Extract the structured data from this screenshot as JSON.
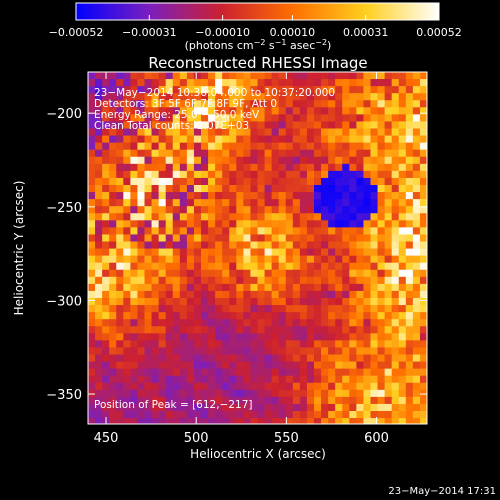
{
  "chart_data": {
    "type": "heatmap",
    "title": "Reconstructed RHESSI Image",
    "xlabel": "Heliocentric X (arcsec)",
    "ylabel": "Heliocentric Y (arcsec)",
    "xlim": [
      440,
      628
    ],
    "ylim": [
      -366,
      -178
    ],
    "x_ticks": [
      450,
      500,
      550,
      600
    ],
    "y_ticks": [
      -200,
      -250,
      -300,
      -350
    ],
    "x_tick_labels": [
      "450",
      "500",
      "550",
      "600"
    ],
    "y_tick_labels": [
      "−200",
      "−250",
      "−300",
      "−350"
    ],
    "colorbar": {
      "range": [
        -0.00052,
        0.00052
      ],
      "ticks": [
        -0.00052,
        -0.00031,
        -0.0001,
        0.0001,
        0.00031,
        0.00052
      ],
      "tick_labels": [
        "−0.00052",
        "−0.00031",
        "−0.00010",
        "0.00010",
        "0.00031",
        "0.00052"
      ],
      "unit_prefix": "(photons cm",
      "unit_exp1": "−2",
      "unit_mid1": " s",
      "unit_exp2": "−1",
      "unit_mid2": " asec",
      "unit_exp3": "−2",
      "unit_suffix": ")",
      "colors": [
        "#0000ff",
        "#7a1fbf",
        "#cc2030",
        "#ff7000",
        "#ffd020",
        "#ffffff"
      ]
    },
    "annotations": {
      "time_range": "23−May−2014 10:36:04.000 to 10:37:20.000",
      "detectors": "Detectors: 3F 5F 6F 7F 8F 9F, Att 0",
      "energy": "Energy Range: 25.0 − 50.0 keV",
      "clean": "Clean     Total counts: 2.07E+03",
      "peak": "Position of Peak = [612,−217]"
    },
    "peak": [
      612,
      -217
    ],
    "timestamp": "23−May−2014 17:31"
  }
}
